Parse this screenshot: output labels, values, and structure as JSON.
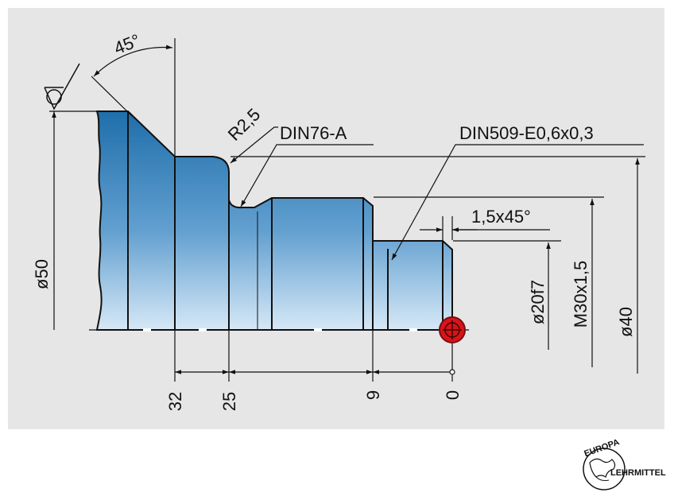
{
  "drawing": {
    "angle_label": "45°",
    "radius_label": "R2,5",
    "undercut_label": "DIN76-A",
    "relief_label": "DIN509-E0,6x0,3",
    "chamfer_label": "1,5x45°",
    "dia_50": "ø50",
    "dia_20f7": "ø20f7",
    "thread": "M30x1,5",
    "dia_40": "ø40",
    "pos_32": "32",
    "pos_25": "25",
    "pos_9": "9",
    "pos_0": "0"
  },
  "logo": {
    "top": "EUROPA",
    "right": "LEHRMITTEL",
    "colors": {
      "mark": "#111111"
    }
  },
  "colors": {
    "panel": "#e6e6e7",
    "part_light": "#cfe3f3",
    "part_dark": "#1c6aa8",
    "origin_marker": "#d7141a"
  }
}
